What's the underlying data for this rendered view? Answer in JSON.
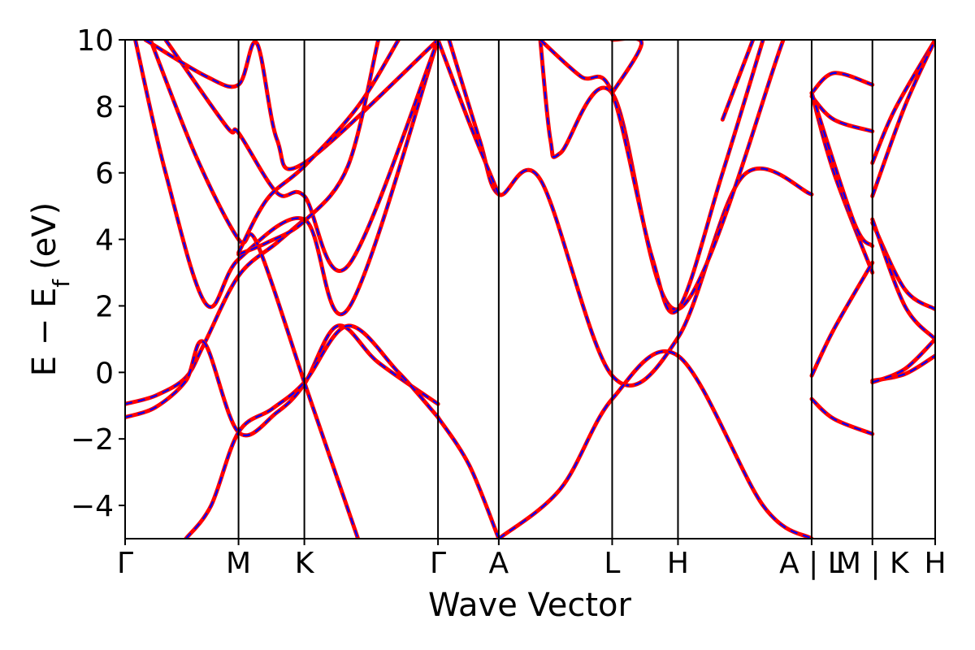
{
  "colors": {
    "band_primary": "#ff0000",
    "band_dashed": "#0000ff",
    "axes": "#000000"
  },
  "chart_data": {
    "type": "line",
    "xlabel": "Wave Vector",
    "ylabel": "E − E",
    "ylabel_sub": "f",
    "ylabel_unit": "(eV)",
    "ylim": [
      -5,
      10
    ],
    "yticks": [
      -4,
      -2,
      0,
      2,
      4,
      6,
      8,
      10
    ],
    "ytick_labels": [
      "−4",
      "−2",
      "0",
      "2",
      "4",
      "6",
      "8",
      "10"
    ],
    "xlim": [
      0,
      8.0
    ],
    "kpoints": [
      {
        "label": "Γ",
        "x": 0.0
      },
      {
        "label": "M",
        "x": 1.12
      },
      {
        "label": "K",
        "x": 1.77
      },
      {
        "label": "Γ",
        "x": 3.09
      },
      {
        "label": "A",
        "x": 3.69
      },
      {
        "label": "L",
        "x": 4.81
      },
      {
        "label": "H",
        "x": 5.46
      },
      {
        "label": "A | L",
        "x": 6.78
      },
      {
        "label": "M | K",
        "x": 7.38
      },
      {
        "label": "H",
        "x": 8.0
      }
    ],
    "series": [
      {
        "segment": 0,
        "points": [
          [
            0.0,
            -0.95
          ],
          [
            0.3,
            -0.7
          ],
          [
            0.6,
            -0.15
          ],
          [
            0.78,
            0.85
          ],
          [
            1.12,
            2.9
          ],
          [
            1.5,
            3.9
          ],
          [
            1.77,
            4.6
          ]
        ]
      },
      {
        "segment": 0,
        "points": [
          [
            0.0,
            -1.35
          ],
          [
            0.3,
            -1.05
          ],
          [
            0.6,
            -0.25
          ],
          [
            0.78,
            0.9
          ],
          [
            1.12,
            -1.8
          ],
          [
            1.5,
            -1.2
          ],
          [
            1.77,
            -0.35
          ],
          [
            2.1,
            1.4
          ],
          [
            2.5,
            0.3
          ],
          [
            3.09,
            -0.95
          ]
        ]
      },
      {
        "segment": 0,
        "points": [
          [
            0.6,
            -5.0
          ],
          [
            0.85,
            -4.0
          ],
          [
            1.12,
            -1.8
          ],
          [
            1.45,
            -1.1
          ],
          [
            1.77,
            -0.3
          ],
          [
            2.2,
            1.4
          ],
          [
            2.7,
            0.0
          ],
          [
            3.09,
            -1.35
          ]
        ]
      },
      {
        "segment": 0,
        "points": [
          [
            1.77,
            -0.3
          ],
          [
            2.3,
            -5.0
          ]
        ]
      },
      {
        "segment": 0,
        "points": [
          [
            0.1,
            10.0
          ],
          [
            0.4,
            6.0
          ],
          [
            0.8,
            2.05
          ],
          [
            1.12,
            3.4
          ],
          [
            1.77,
            4.6
          ],
          [
            2.2,
            1.9
          ],
          [
            3.09,
            10.0
          ]
        ]
      },
      {
        "segment": 0,
        "points": [
          [
            0.25,
            10.0
          ],
          [
            0.7,
            6.5
          ],
          [
            1.12,
            4.0
          ],
          [
            1.3,
            3.9
          ],
          [
            1.77,
            -0.3
          ]
        ]
      },
      {
        "segment": 0,
        "points": [
          [
            0.4,
            10.0
          ],
          [
            1.0,
            7.4
          ],
          [
            1.12,
            7.2
          ],
          [
            1.5,
            5.4
          ],
          [
            1.77,
            5.3
          ],
          [
            2.2,
            3.2
          ],
          [
            3.09,
            10.0
          ]
        ]
      },
      {
        "segment": 0,
        "points": [
          [
            0.2,
            10.0
          ],
          [
            0.8,
            8.9
          ],
          [
            1.12,
            8.65
          ],
          [
            1.3,
            9.9
          ],
          [
            1.5,
            7.0
          ],
          [
            1.77,
            6.3
          ],
          [
            3.09,
            10.0
          ]
        ]
      },
      {
        "segment": 0,
        "points": [
          [
            1.12,
            3.55
          ],
          [
            1.4,
            3.9
          ],
          [
            1.77,
            4.55
          ],
          [
            2.2,
            6.2
          ],
          [
            2.5,
            10.0
          ]
        ]
      },
      {
        "segment": 0,
        "points": [
          [
            1.12,
            3.6
          ],
          [
            1.4,
            5.2
          ],
          [
            1.77,
            6.2
          ],
          [
            2.3,
            8.0
          ],
          [
            2.7,
            10.0
          ]
        ]
      },
      {
        "segment": 1,
        "points": [
          [
            3.09,
            -1.35
          ],
          [
            3.4,
            -2.8
          ],
          [
            3.69,
            -5.0
          ]
        ]
      },
      {
        "segment": 1,
        "points": [
          [
            3.2,
            10.0
          ],
          [
            3.5,
            7.0
          ],
          [
            3.69,
            5.35
          ],
          [
            4.1,
            5.8
          ],
          [
            4.81,
            -0.1
          ],
          [
            5.46,
            1.05
          ],
          [
            6.1,
            5.9
          ],
          [
            6.78,
            5.35
          ]
        ]
      },
      {
        "segment": 1,
        "points": [
          [
            3.69,
            5.35
          ],
          [
            3.4,
            7.5
          ],
          [
            3.09,
            10.0
          ]
        ]
      },
      {
        "segment": 1,
        "points": [
          [
            3.69,
            -5.0
          ],
          [
            4.3,
            -3.5
          ],
          [
            4.81,
            -0.8
          ],
          [
            5.46,
            0.5
          ],
          [
            6.3,
            -4.0
          ],
          [
            6.78,
            -5.0
          ]
        ]
      },
      {
        "segment": 1,
        "points": [
          [
            4.1,
            10.0
          ],
          [
            4.2,
            7.0
          ],
          [
            4.3,
            6.6
          ],
          [
            4.81,
            8.4
          ],
          [
            5.46,
            1.9
          ],
          [
            6.5,
            10.0
          ]
        ]
      },
      {
        "segment": 1,
        "points": [
          [
            4.1,
            10.0
          ],
          [
            4.5,
            8.9
          ],
          [
            4.81,
            8.4
          ],
          [
            5.2,
            3.5
          ],
          [
            5.46,
            1.9
          ],
          [
            5.9,
            6.0
          ],
          [
            6.3,
            10.0
          ]
        ]
      },
      {
        "segment": 1,
        "points": [
          [
            4.81,
            10.0
          ],
          [
            5.1,
            9.9
          ],
          [
            4.81,
            8.4
          ]
        ]
      },
      {
        "segment": 1,
        "points": [
          [
            5.9,
            7.6
          ],
          [
            6.2,
            10.0
          ]
        ]
      },
      {
        "segment": 2,
        "points": [
          [
            6.78,
            8.4
          ],
          [
            7.0,
            6.0
          ],
          [
            7.38,
            3.0
          ]
        ]
      },
      {
        "segment": 2,
        "points": [
          [
            6.78,
            8.3
          ],
          [
            7.0,
            7.6
          ],
          [
            7.38,
            7.25
          ]
        ]
      },
      {
        "segment": 2,
        "points": [
          [
            6.78,
            8.4
          ],
          [
            7.0,
            9.0
          ],
          [
            7.38,
            8.65
          ]
        ]
      },
      {
        "segment": 2,
        "points": [
          [
            6.78,
            -0.1
          ],
          [
            7.0,
            1.3
          ],
          [
            7.38,
            3.3
          ]
        ]
      },
      {
        "segment": 2,
        "points": [
          [
            6.78,
            -0.8
          ],
          [
            7.0,
            -1.4
          ],
          [
            7.38,
            -1.85
          ]
        ]
      },
      {
        "segment": 2,
        "points": [
          [
            6.78,
            8.4
          ],
          [
            7.2,
            4.5
          ],
          [
            7.38,
            3.8
          ]
        ]
      },
      {
        "segment": 2,
        "points": [
          [
            7.38,
            6.3
          ],
          [
            7.6,
            7.9
          ],
          [
            8.0,
            10.0
          ]
        ]
      },
      {
        "segment": 2,
        "points": [
          [
            7.38,
            5.3
          ],
          [
            7.7,
            8.0
          ],
          [
            8.0,
            10.0
          ]
        ]
      },
      {
        "segment": 2,
        "points": [
          [
            7.38,
            4.5
          ],
          [
            7.7,
            2.5
          ],
          [
            8.0,
            1.9
          ]
        ]
      },
      {
        "segment": 2,
        "points": [
          [
            7.38,
            4.6
          ],
          [
            7.7,
            2.0
          ],
          [
            8.0,
            1.0
          ]
        ]
      },
      {
        "segment": 2,
        "points": [
          [
            7.38,
            -0.25
          ],
          [
            7.7,
            -0.05
          ],
          [
            8.0,
            0.5
          ]
        ]
      },
      {
        "segment": 2,
        "points": [
          [
            7.38,
            -0.3
          ],
          [
            7.7,
            0.1
          ],
          [
            8.0,
            1.0
          ]
        ]
      }
    ]
  }
}
